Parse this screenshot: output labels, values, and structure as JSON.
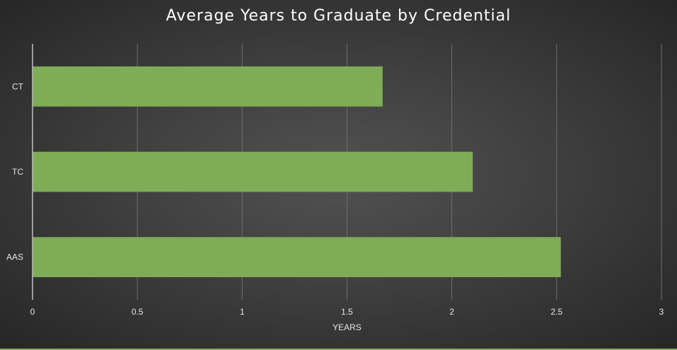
{
  "chart_data": {
    "type": "bar",
    "orientation": "horizontal",
    "title": "Average Years to Graduate by Credential",
    "xlabel": "YEARS",
    "ylabel": "",
    "categories": [
      "CT",
      "TC",
      "AAS"
    ],
    "values": [
      1.67,
      2.1,
      2.52
    ],
    "xlim": [
      0,
      3
    ],
    "xticks": [
      "0",
      "0.5",
      "1",
      "1.5",
      "2",
      "2.5",
      "3"
    ],
    "grid": true,
    "legend": "none",
    "bar_color": "#7fac57",
    "gridline_color": "#6e6e6e",
    "axis_color": "#bfbfbf"
  }
}
